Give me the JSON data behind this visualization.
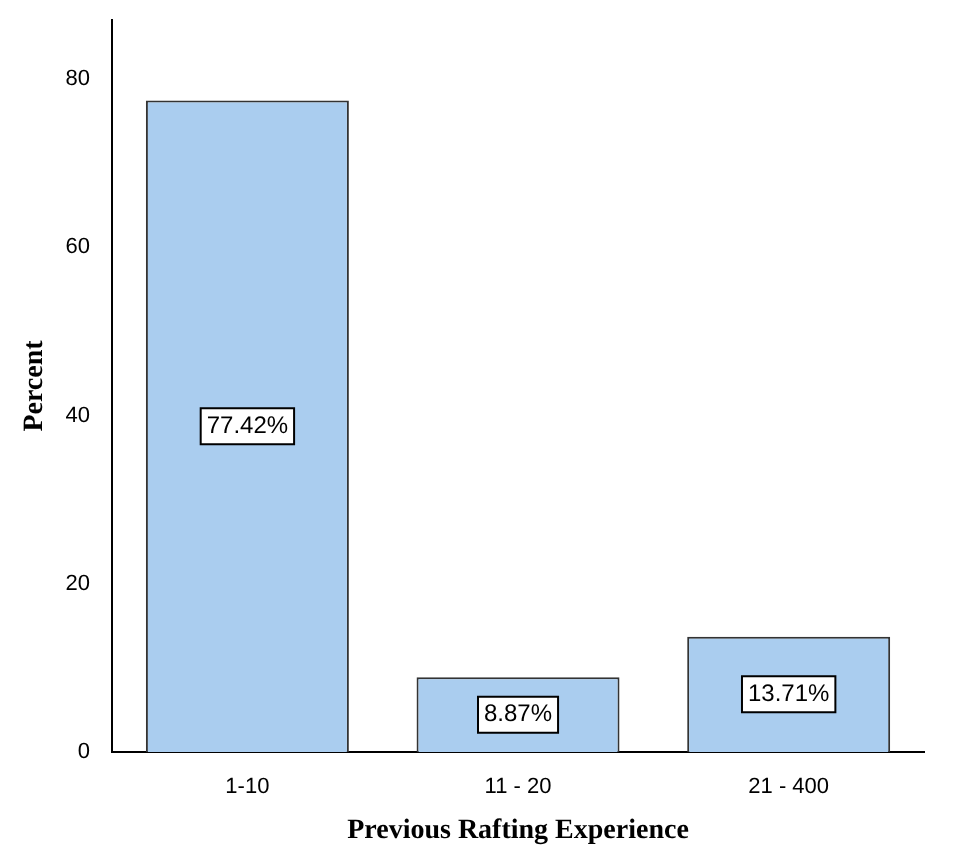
{
  "chart_data": {
    "type": "bar",
    "xlabel": "Previous Rafting Experience",
    "ylabel": "Percent",
    "categories": [
      "1-10",
      "11 - 20",
      "21 - 400"
    ],
    "values": [
      77.42,
      8.87,
      13.71
    ],
    "value_labels": [
      "77.42%",
      "8.87%",
      "13.71%"
    ],
    "color": "#aacdef",
    "ylim": [
      0,
      87
    ],
    "yticks": [
      0,
      20,
      40,
      60,
      80
    ],
    "grid": false,
    "legend": false
  }
}
